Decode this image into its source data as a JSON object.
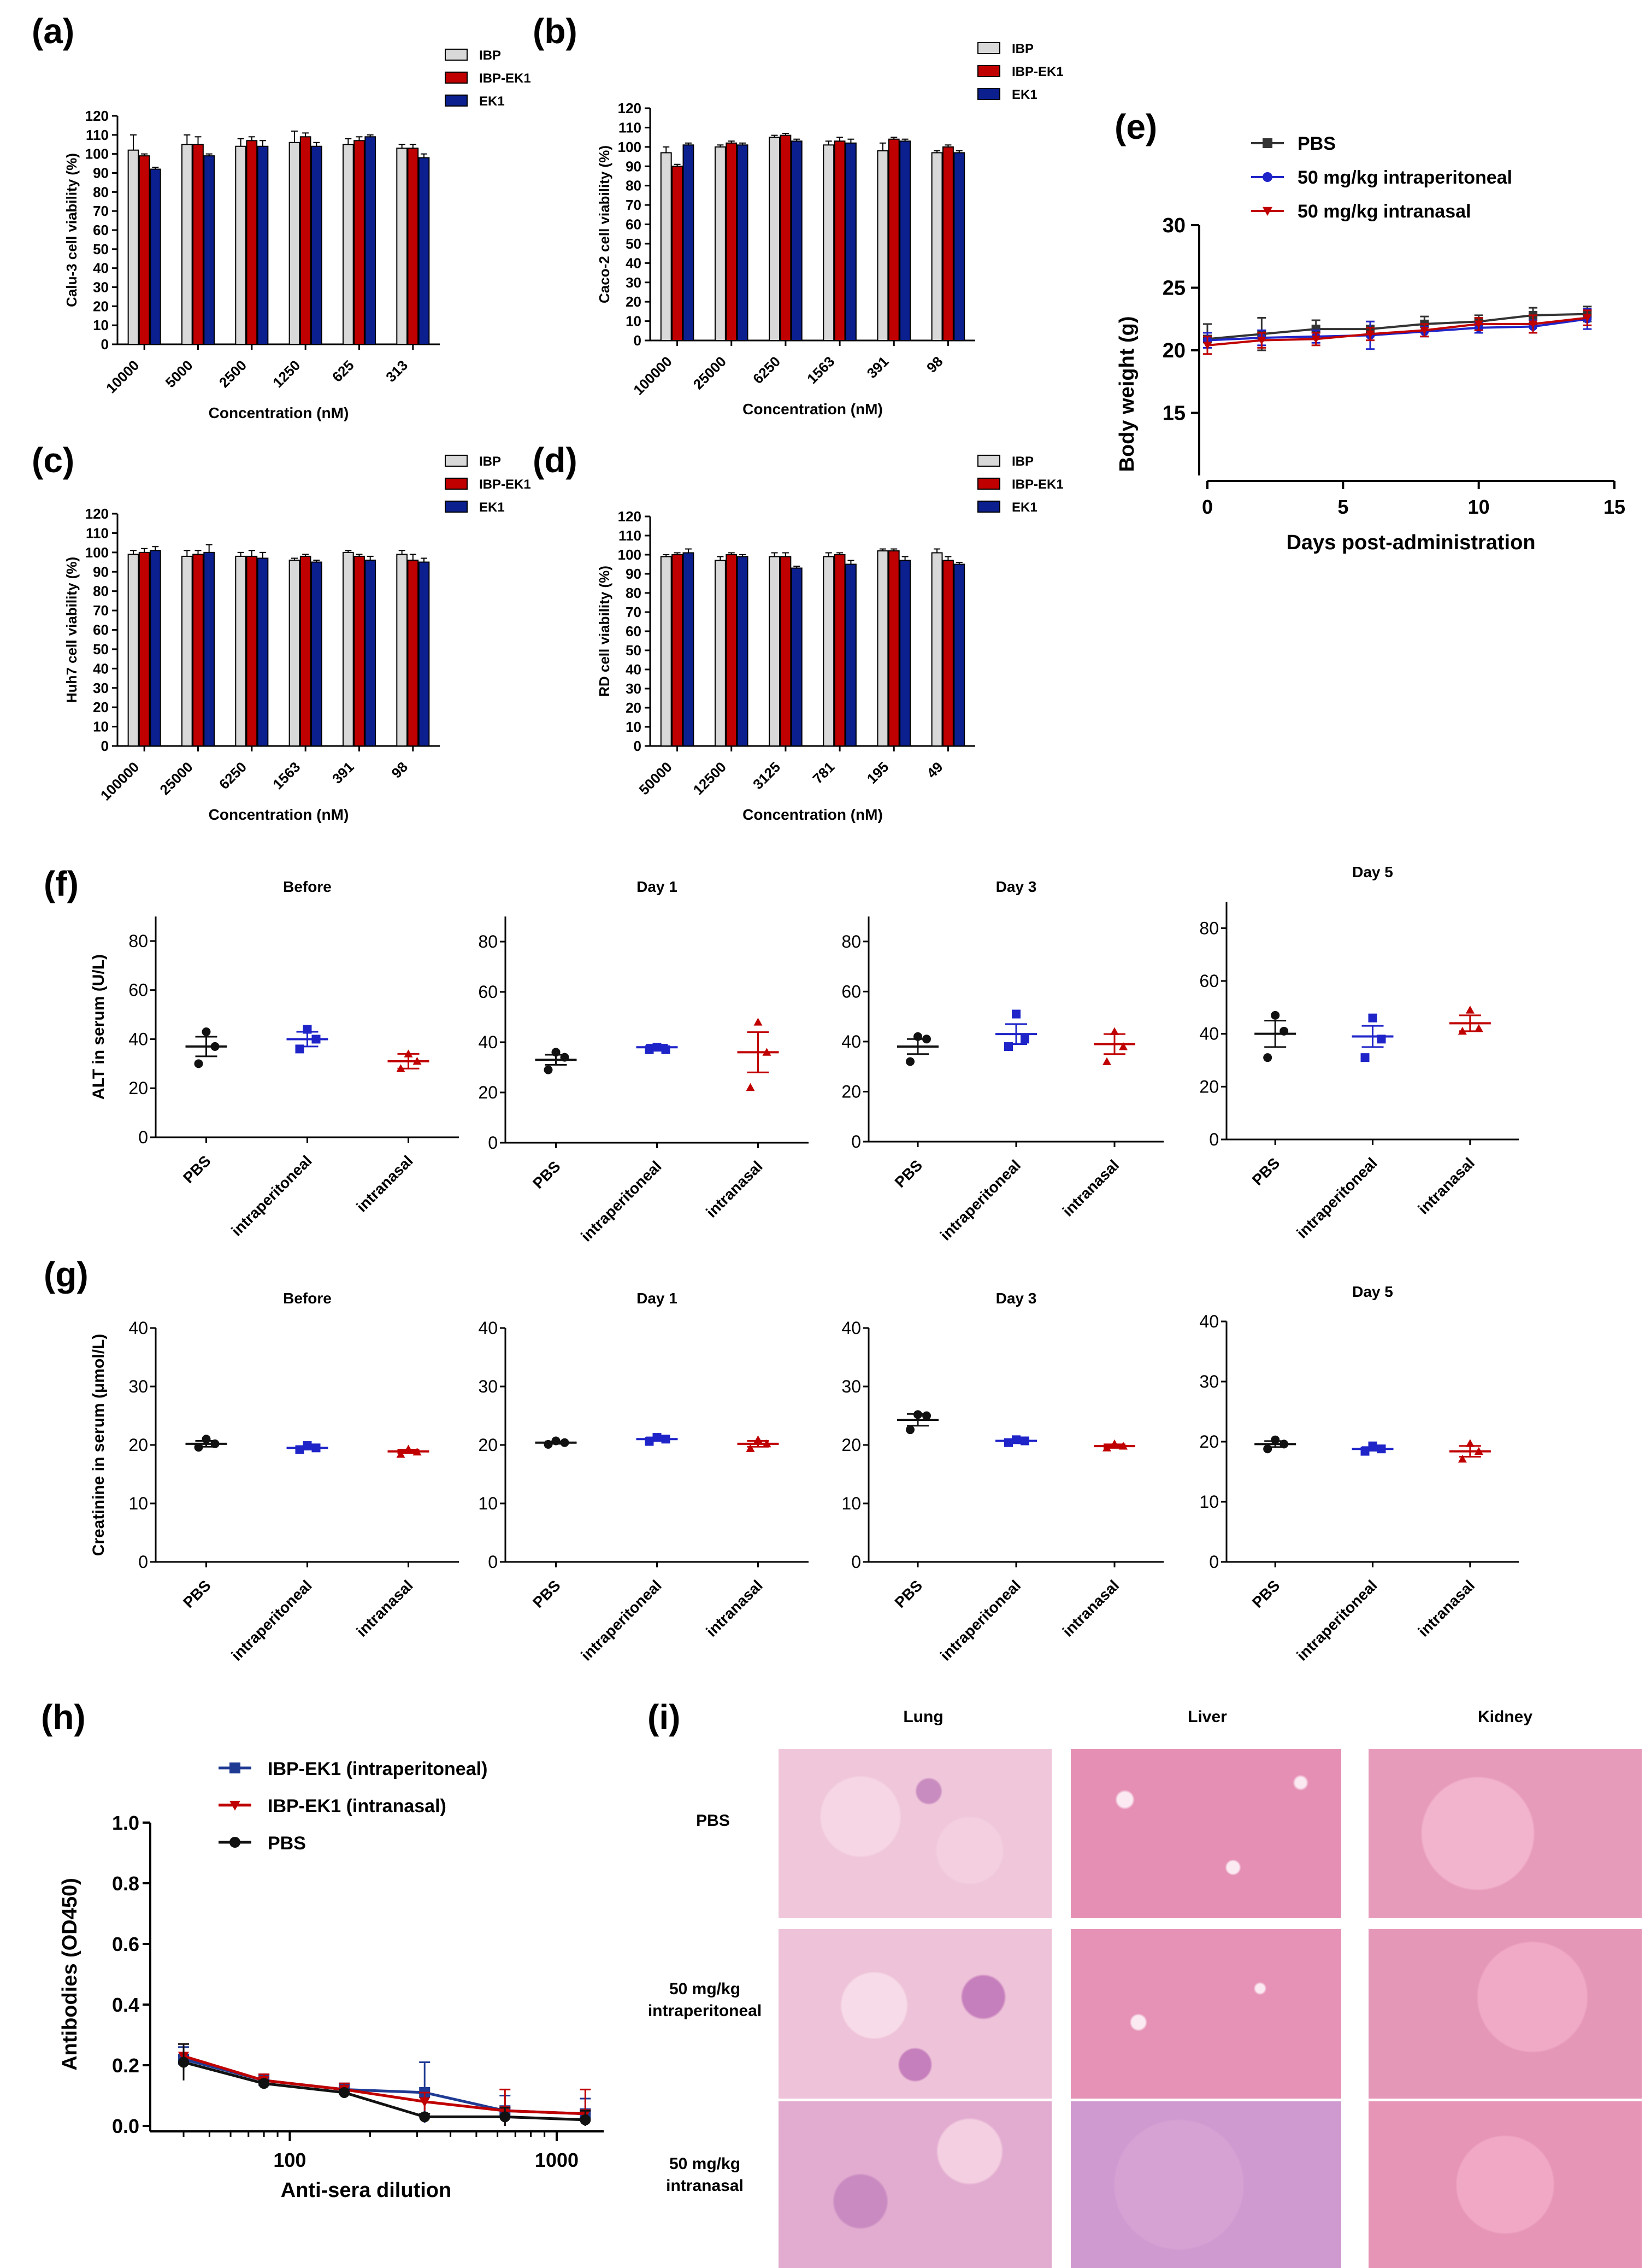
{
  "colors": {
    "ibp": "#d9d9d9",
    "ibp_ek1": "#c00000",
    "ek1": "#0b1f8f",
    "pbs": "#333333",
    "ip_blue": "#1f24c8",
    "in_red": "#c00000",
    "h_blue": "#1f3a93",
    "h_red": "#c00000",
    "h_black": "#111111"
  },
  "panel_labels": {
    "a": "(a)",
    "b": "(b)",
    "c": "(c)",
    "d": "(d)",
    "e": "(e)",
    "f": "(f)",
    "g": "(g)",
    "h": "(h)",
    "i": "(i)"
  },
  "chart_data": [
    {
      "id": "a",
      "type": "bar",
      "ylabel": "Calu-3 cell viability (%)",
      "xlabel": "Concentration (nM)",
      "ylim": [
        0,
        120
      ],
      "yticks": [
        0,
        10,
        20,
        30,
        40,
        50,
        60,
        70,
        80,
        90,
        100,
        110,
        120
      ],
      "categories": [
        "10000",
        "5000",
        "2500",
        "1250",
        "625",
        "313"
      ],
      "series": [
        {
          "name": "IBP",
          "values": [
            102,
            105,
            104,
            106,
            105,
            103
          ],
          "err": [
            8,
            5,
            4,
            6,
            3,
            2
          ]
        },
        {
          "name": "IBP-EK1",
          "values": [
            99,
            105,
            107,
            109,
            107,
            103
          ],
          "err": [
            1,
            4,
            2,
            2,
            2,
            2
          ]
        },
        {
          "name": "EK1",
          "values": [
            92,
            99,
            104,
            104,
            109,
            98
          ],
          "err": [
            1,
            1,
            3,
            2,
            1,
            2
          ]
        }
      ]
    },
    {
      "id": "b",
      "type": "bar",
      "ylabel": "Caco-2 cell viability (%)",
      "xlabel": "Concentration (nM)",
      "ylim": [
        0,
        120
      ],
      "yticks": [
        0,
        10,
        20,
        30,
        40,
        50,
        60,
        70,
        80,
        90,
        100,
        110,
        120
      ],
      "categories": [
        "100000",
        "25000",
        "6250",
        "1563",
        "391",
        "98"
      ],
      "series": [
        {
          "name": "IBP",
          "values": [
            97,
            100,
            105,
            101,
            98,
            97
          ],
          "err": [
            3,
            1,
            1,
            2,
            4,
            1
          ]
        },
        {
          "name": "IBP-EK1",
          "values": [
            90,
            102,
            106,
            103,
            104,
            100
          ],
          "err": [
            1,
            1,
            1,
            2,
            1,
            1
          ]
        },
        {
          "name": "EK1",
          "values": [
            101,
            101,
            103,
            102,
            103,
            97
          ],
          "err": [
            1,
            1,
            1,
            2,
            1,
            1
          ]
        }
      ]
    },
    {
      "id": "c",
      "type": "bar",
      "ylabel": "Huh7 cell viability (%)",
      "xlabel": "Concentration (nM)",
      "ylim": [
        0,
        120
      ],
      "yticks": [
        0,
        10,
        20,
        30,
        40,
        50,
        60,
        70,
        80,
        90,
        100,
        110,
        120
      ],
      "categories": [
        "100000",
        "25000",
        "6250",
        "1563",
        "391",
        "98"
      ],
      "series": [
        {
          "name": "IBP",
          "values": [
            99,
            98,
            98,
            96,
            100,
            99
          ],
          "err": [
            2,
            3,
            2,
            1,
            1,
            2
          ]
        },
        {
          "name": "IBP-EK1",
          "values": [
            100,
            99,
            98,
            98,
            98,
            96
          ],
          "err": [
            2,
            2,
            3,
            1,
            1,
            3
          ]
        },
        {
          "name": "EK1",
          "values": [
            101,
            100,
            97,
            95,
            96,
            95
          ],
          "err": [
            2,
            4,
            3,
            1,
            2,
            2
          ]
        }
      ]
    },
    {
      "id": "d",
      "type": "bar",
      "ylabel": "RD cell viability (%)",
      "xlabel": "Concentration (nM)",
      "ylim": [
        0,
        120
      ],
      "yticks": [
        0,
        10,
        20,
        30,
        40,
        50,
        60,
        70,
        80,
        90,
        100,
        110,
        120
      ],
      "categories": [
        "50000",
        "12500",
        "3125",
        "781",
        "195",
        "49"
      ],
      "series": [
        {
          "name": "IBP",
          "values": [
            99,
            97,
            99,
            99,
            102,
            101
          ],
          "err": [
            1,
            2,
            2,
            2,
            1,
            2
          ]
        },
        {
          "name": "IBP-EK1",
          "values": [
            100,
            100,
            99,
            100,
            102,
            97
          ],
          "err": [
            1,
            1,
            2,
            1,
            1,
            2
          ]
        },
        {
          "name": "EK1",
          "values": [
            101,
            99,
            93,
            95,
            97,
            95
          ],
          "err": [
            2,
            1,
            1,
            2,
            2,
            1
          ]
        }
      ]
    },
    {
      "id": "e",
      "type": "line",
      "ylabel": "Body weight (g)",
      "xlabel": "Days post-administration",
      "xlim": [
        0,
        15
      ],
      "ylim": [
        10,
        30
      ],
      "xticks": [
        0,
        5,
        10,
        15
      ],
      "yticks": [
        15,
        20,
        25,
        30
      ],
      "series": [
        {
          "name": "PBS",
          "x": [
            0,
            2,
            4,
            6,
            8,
            10,
            12,
            14
          ],
          "values": [
            20.9,
            21.3,
            21.7,
            21.7,
            22.1,
            22.3,
            22.8,
            22.9
          ],
          "err": [
            1.2,
            1.3,
            0.7,
            0.6,
            0.6,
            0.5,
            0.6,
            0.6
          ]
        },
        {
          "name": "50 mg/kg intraperitoneal",
          "x": [
            0,
            2,
            4,
            6,
            8,
            10,
            12,
            14
          ],
          "values": [
            20.8,
            21.0,
            21.1,
            21.2,
            21.5,
            21.8,
            21.9,
            22.5
          ],
          "err": [
            0.6,
            0.6,
            0.5,
            1.1,
            0.4,
            0.4,
            0.5,
            0.8
          ]
        },
        {
          "name": "50 mg/kg intranasal",
          "x": [
            0,
            2,
            4,
            6,
            8,
            10,
            12,
            14
          ],
          "values": [
            20.4,
            20.8,
            20.9,
            21.3,
            21.6,
            22.1,
            22.1,
            22.6
          ],
          "err": [
            0.7,
            0.6,
            0.5,
            0.5,
            0.5,
            0.5,
            0.7,
            0.6
          ]
        }
      ]
    },
    {
      "id": "f",
      "type": "scatter",
      "ylabel": "ALT in serum (U/L)",
      "ylim": [
        0,
        90
      ],
      "yticks": [
        0,
        20,
        40,
        60,
        80
      ],
      "categories": [
        "PBS",
        "intraperitoneal",
        "intranasal"
      ],
      "panels": [
        {
          "title": "Before",
          "groups": [
            {
              "points": [
                43,
                37,
                30
              ],
              "mean": 37,
              "err": 4
            },
            {
              "points": [
                44,
                40,
                36
              ],
              "mean": 40,
              "err": 3
            },
            {
              "points": [
                34,
                31,
                28
              ],
              "mean": 31,
              "err": 3
            }
          ]
        },
        {
          "title": "Day 1",
          "groups": [
            {
              "points": [
                36,
                34,
                29
              ],
              "mean": 33,
              "err": 2
            },
            {
              "points": [
                38,
                37,
                37
              ],
              "mean": 38,
              "err": 1
            },
            {
              "points": [
                48,
                36,
                22
              ],
              "mean": 36,
              "err": 8
            }
          ]
        },
        {
          "title": "Day 3",
          "groups": [
            {
              "points": [
                42,
                41,
                32
              ],
              "mean": 38,
              "err": 3
            },
            {
              "points": [
                51,
                41,
                38
              ],
              "mean": 43,
              "err": 4
            },
            {
              "points": [
                44,
                38,
                32
              ],
              "mean": 39,
              "err": 4
            }
          ]
        },
        {
          "title": "Day 5",
          "groups": [
            {
              "points": [
                47,
                41,
                31
              ],
              "mean": 40,
              "err": 5
            },
            {
              "points": [
                46,
                38,
                31
              ],
              "mean": 39,
              "err": 4
            },
            {
              "points": [
                49,
                42,
                41
              ],
              "mean": 44,
              "err": 3
            }
          ]
        }
      ]
    },
    {
      "id": "g",
      "type": "scatter",
      "ylabel": "Creatinine in serum (μmol/L)",
      "ylim": [
        0,
        40
      ],
      "yticks": [
        0,
        10,
        20,
        30,
        40
      ],
      "categories": [
        "PBS",
        "intraperitoneal",
        "intranasal"
      ],
      "panels": [
        {
          "title": "Before",
          "groups": [
            {
              "points": [
                21.0,
                20.2,
                19.6
              ],
              "mean": 20.2,
              "err": 0.5
            },
            {
              "points": [
                19.9,
                19.5,
                19.2
              ],
              "mean": 19.5,
              "err": 0.3
            },
            {
              "points": [
                19.3,
                18.8,
                18.4
              ],
              "mean": 18.9,
              "err": 0.3
            }
          ]
        },
        {
          "title": "Day 1",
          "groups": [
            {
              "points": [
                20.7,
                20.4,
                20.1
              ],
              "mean": 20.4,
              "err": 0.2
            },
            {
              "points": [
                21.3,
                21.0,
                20.6
              ],
              "mean": 21.0,
              "err": 0.3
            },
            {
              "points": [
                20.9,
                20.2,
                19.4
              ],
              "mean": 20.2,
              "err": 0.5
            }
          ]
        },
        {
          "title": "Day 3",
          "groups": [
            {
              "points": [
                25.2,
                25.0,
                22.6
              ],
              "mean": 24.3,
              "err": 1.0
            },
            {
              "points": [
                20.9,
                20.7,
                20.4
              ],
              "mean": 20.7,
              "err": 0.2
            },
            {
              "points": [
                20.2,
                19.8,
                19.5
              ],
              "mean": 19.8,
              "err": 0.3
            }
          ]
        },
        {
          "title": "Day 5",
          "groups": [
            {
              "points": [
                20.3,
                19.6,
                18.8
              ],
              "mean": 19.6,
              "err": 0.5
            },
            {
              "points": [
                19.3,
                18.8,
                18.4
              ],
              "mean": 18.8,
              "err": 0.3
            },
            {
              "points": [
                19.7,
                18.4,
                17.1
              ],
              "mean": 18.4,
              "err": 0.9
            }
          ]
        }
      ]
    },
    {
      "id": "h",
      "type": "line",
      "ylabel": "Antibodies (OD450)",
      "xlabel": "Anti-sera dilution",
      "xscale": "log",
      "xlim": [
        30,
        1500
      ],
      "ylim": [
        0,
        1.0
      ],
      "xticks": [
        100,
        1000
      ],
      "yticks": [
        0.0,
        0.2,
        0.4,
        0.6,
        0.8,
        1.0
      ],
      "series": [
        {
          "name": "IBP-EK1 (intraperitoneal)",
          "x": [
            40,
            80,
            160,
            320,
            640,
            1280
          ],
          "values": [
            0.22,
            0.15,
            0.12,
            0.11,
            0.05,
            0.04
          ],
          "err": [
            0.04,
            0.02,
            0.02,
            0.1,
            0.05,
            0.05
          ]
        },
        {
          "name": "IBP-EK1 (intranasal)",
          "x": [
            40,
            80,
            160,
            320,
            640,
            1280
          ],
          "values": [
            0.23,
            0.15,
            0.12,
            0.08,
            0.05,
            0.04
          ],
          "err": [
            0.04,
            0.02,
            0.02,
            0.03,
            0.07,
            0.08
          ]
        },
        {
          "name": "PBS",
          "x": [
            40,
            80,
            160,
            320,
            640,
            1280
          ],
          "values": [
            0.21,
            0.14,
            0.11,
            0.03,
            0.03,
            0.02
          ],
          "err": [
            0.06,
            0.01,
            0.01,
            0.01,
            0.03,
            0.03
          ]
        }
      ]
    }
  ],
  "histology": {
    "columns": [
      "Lung",
      "Liver",
      "Kidney"
    ],
    "rows": [
      "PBS",
      "50 mg/kg intraperitoneal",
      "50 mg/kg intranasal"
    ]
  }
}
